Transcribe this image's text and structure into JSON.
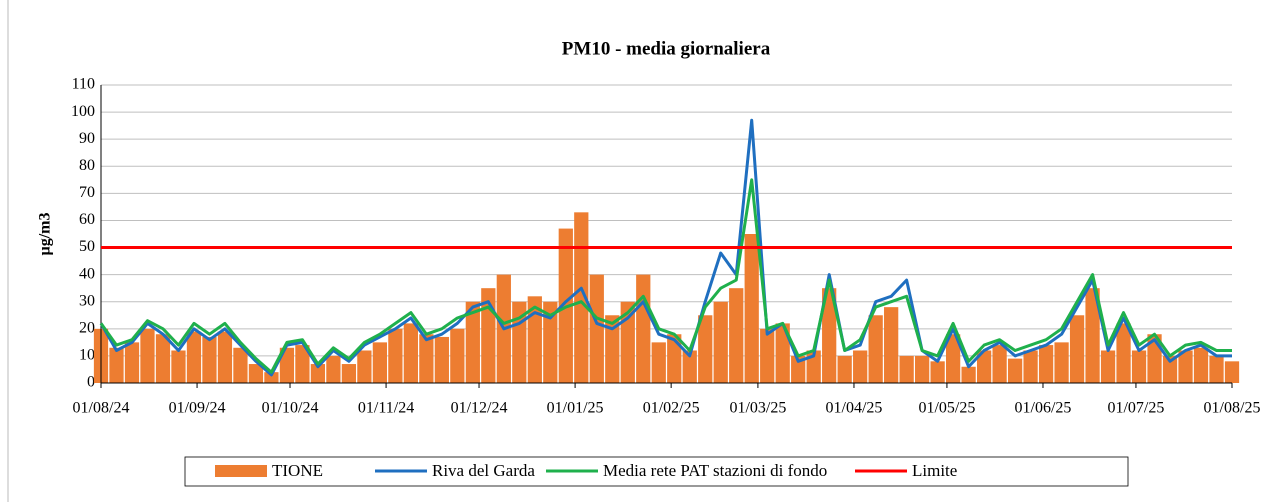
{
  "chart_data": {
    "type": "bar-line",
    "title": "PM10 - media giornaliera",
    "y_label": "µg/m3",
    "x": [
      "01/08/24",
      "06/08/24",
      "11/08/24",
      "16/08/24",
      "21/08/24",
      "26/08/24",
      "31/08/24",
      "05/09/24",
      "10/09/24",
      "15/09/24",
      "20/09/24",
      "25/09/24",
      "30/09/24",
      "05/10/24",
      "10/10/24",
      "15/10/24",
      "20/10/24",
      "25/10/24",
      "30/10/24",
      "04/11/24",
      "09/11/24",
      "14/11/24",
      "19/11/24",
      "24/11/24",
      "29/11/24",
      "04/12/24",
      "09/12/24",
      "14/12/24",
      "19/12/24",
      "24/12/24",
      "29/12/24",
      "03/01/25",
      "08/01/25",
      "13/01/25",
      "18/01/25",
      "23/01/25",
      "28/01/25",
      "02/02/25",
      "07/02/25",
      "12/02/25",
      "17/02/25",
      "22/02/25",
      "27/02/25",
      "04/03/25",
      "09/03/25",
      "14/03/25",
      "19/03/25",
      "24/03/25",
      "29/03/25",
      "03/04/25",
      "08/04/25",
      "13/04/25",
      "18/04/25",
      "23/04/25",
      "28/04/25",
      "03/05/25",
      "08/05/25",
      "13/05/25",
      "18/05/25",
      "23/05/25",
      "28/05/25",
      "02/06/25",
      "07/06/25",
      "12/06/25",
      "17/06/25",
      "22/06/25",
      "27/06/25",
      "02/07/25",
      "07/07/25",
      "12/07/25",
      "17/07/25",
      "22/07/25",
      "27/07/25",
      "01/08/25"
    ],
    "series": [
      {
        "name": "TIONE",
        "kind": "bar",
        "color": "#ed7d31",
        "values": [
          20,
          13,
          15,
          20,
          18,
          12,
          19,
          17,
          19,
          13,
          7,
          4,
          13,
          14,
          7,
          10,
          7,
          12,
          15,
          20,
          22,
          18,
          17,
          20,
          30,
          35,
          40,
          30,
          32,
          30,
          57,
          63,
          40,
          25,
          30,
          40,
          15,
          18,
          12,
          25,
          30,
          35,
          55,
          20,
          22,
          10,
          12,
          35,
          10,
          12,
          25,
          28,
          10,
          10,
          8,
          18,
          6,
          12,
          14,
          9,
          12,
          14,
          15,
          25,
          35,
          12,
          22,
          12,
          18,
          10,
          12,
          13,
          10,
          8
        ]
      },
      {
        "name": "Riva del Garda",
        "kind": "line",
        "color": "#1f6fc0",
        "values": [
          22,
          12,
          15,
          22,
          18,
          12,
          20,
          16,
          20,
          14,
          8,
          3,
          14,
          15,
          6,
          12,
          8,
          14,
          17,
          20,
          24,
          16,
          18,
          22,
          28,
          30,
          20,
          22,
          26,
          24,
          30,
          35,
          22,
          20,
          24,
          30,
          18,
          16,
          10,
          30,
          48,
          40,
          97,
          18,
          22,
          8,
          10,
          40,
          12,
          14,
          30,
          32,
          38,
          12,
          8,
          20,
          6,
          12,
          15,
          10,
          12,
          14,
          18,
          28,
          38,
          12,
          24,
          12,
          16,
          8,
          12,
          14,
          10,
          10
        ]
      },
      {
        "name": "Media rete PAT stazioni di fondo",
        "kind": "line",
        "color": "#1fb04c",
        "values": [
          22,
          14,
          16,
          23,
          20,
          14,
          22,
          18,
          22,
          15,
          9,
          4,
          15,
          16,
          7,
          13,
          9,
          15,
          18,
          22,
          26,
          18,
          20,
          24,
          26,
          28,
          22,
          24,
          28,
          25,
          28,
          30,
          24,
          22,
          26,
          32,
          20,
          18,
          12,
          28,
          35,
          38,
          75,
          20,
          22,
          10,
          12,
          38,
          12,
          16,
          28,
          30,
          32,
          12,
          10,
          22,
          8,
          14,
          16,
          12,
          14,
          16,
          20,
          30,
          40,
          14,
          26,
          14,
          18,
          10,
          14,
          15,
          12,
          12
        ]
      }
    ],
    "limit": {
      "name": "Limite",
      "value": 50,
      "color": "#ff0000"
    },
    "xlim": [
      "01/08/24",
      "01/08/25"
    ],
    "xticks": [
      "01/08/24",
      "01/09/24",
      "01/10/24",
      "01/11/24",
      "01/12/24",
      "01/01/25",
      "01/02/25",
      "01/03/25",
      "01/04/25",
      "01/05/25",
      "01/06/25",
      "01/07/25",
      "01/08/25"
    ],
    "ylim": [
      0,
      110
    ],
    "yticks": [
      0,
      10,
      20,
      30,
      40,
      50,
      60,
      70,
      80,
      90,
      100,
      110
    ],
    "grid": true
  }
}
